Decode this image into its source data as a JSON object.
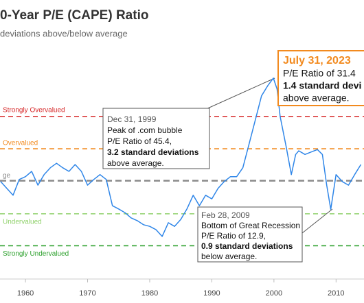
{
  "chart_data": {
    "type": "line",
    "title": "0-Year P/E (CAPE) Ratio",
    "subtitle": "deviations above/below average",
    "x": [
      1956,
      1957,
      1958,
      1959,
      1960,
      1961,
      1962,
      1963,
      1964,
      1965,
      1966,
      1967,
      1968,
      1969,
      1970,
      1971,
      1972,
      1973,
      1974,
      1975,
      1976,
      1977,
      1978,
      1979,
      1980,
      1981,
      1982,
      1983,
      1984,
      1985,
      1986,
      1987,
      1988,
      1989,
      1990,
      1991,
      1992,
      1993,
      1994,
      1995,
      1996,
      1997,
      1998,
      1999,
      1999.9,
      2000.5,
      2001,
      2002,
      2002.8,
      2003.5,
      2004,
      2005,
      2006,
      2007,
      2007.8,
      2008.5,
      2009.15,
      2010,
      2011,
      2012,
      2013,
      2014
    ],
    "values": [
      19.8,
      18.1,
      16.4,
      20.3,
      21.0,
      22.3,
      18.9,
      21.5,
      23.2,
      24.3,
      23.2,
      22.3,
      24.0,
      22.3,
      18.9,
      20.3,
      21.5,
      20.3,
      13.8,
      13.0,
      12.1,
      10.8,
      10.1,
      9.1,
      8.7,
      7.9,
      6.2,
      9.6,
      8.7,
      10.4,
      13.0,
      16.4,
      13.8,
      16.4,
      15.5,
      18.1,
      19.8,
      21.0,
      21.0,
      23.2,
      29.1,
      35.0,
      41.0,
      43.5,
      45.4,
      42.7,
      35.9,
      28.2,
      21.5,
      26.5,
      27.4,
      26.5,
      27.1,
      27.7,
      26.5,
      18.9,
      12.9,
      21.5,
      19.8,
      18.9,
      21.5,
      24.0
    ],
    "color": "#2f86e8",
    "xlim": [
      1955.9,
      2014.5
    ],
    "xticks": [
      1960,
      1970,
      1980,
      1990,
      2000,
      2010
    ],
    "ylim": [
      -4,
      52
    ],
    "reference_lines": [
      {
        "label": "Strongly Overvalued",
        "value": 35.9,
        "color": "#d62728"
      },
      {
        "label": "Overvalued",
        "value": 27.9,
        "color": "#f28a1e"
      },
      {
        "label": "ge",
        "value": 20.0,
        "color": "#8a8a8a"
      },
      {
        "label": "Undervalued",
        "value": 11.8,
        "color": "#8fd16a"
      },
      {
        "label": "Strongly Undervalued",
        "value": 3.9,
        "color": "#2ca02c"
      }
    ],
    "annotations": [
      {
        "title": "Dec 31, 1999",
        "lines": [
          {
            "text": "Peak of .com bubble",
            "bold": false
          },
          {
            "text": "P/E Ratio of 45.4,",
            "bold": false
          },
          {
            "text": "3.2 standard deviations",
            "bold": true
          },
          {
            "text": "above average.",
            "bold": false
          }
        ]
      },
      {
        "title": "Feb 28, 2009",
        "lines": [
          {
            "text": "Bottom of Great Recession",
            "bold": false
          },
          {
            "text": "P/E Ratio of 12.9,",
            "bold": false
          },
          {
            "text": "0.9 standard deviations",
            "bold": true
          },
          {
            "text": "below average.",
            "bold": false
          }
        ]
      },
      {
        "title": "July 31, 2023",
        "title_color": "#f28a1e",
        "lines": [
          {
            "text": "P/E Ratio of 31.4",
            "bold": false
          },
          {
            "text": "1.4 standard devi",
            "bold": true
          },
          {
            "text": "above average.",
            "bold": false
          }
        ]
      }
    ]
  }
}
